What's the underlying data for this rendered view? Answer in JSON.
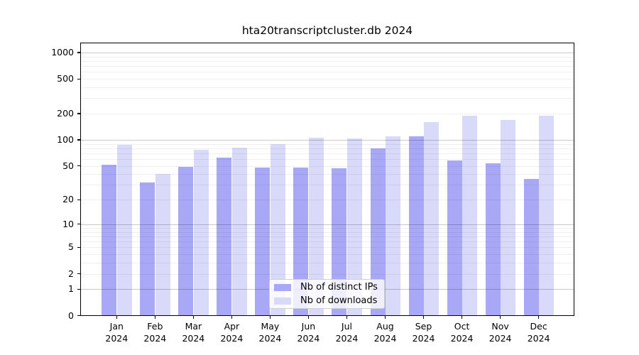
{
  "title": "hta20transcriptcluster.db 2024",
  "chart_data": {
    "type": "bar",
    "title": "hta20transcriptcluster.db 2024",
    "categories": [
      "Jan",
      "Feb",
      "Mar",
      "Apr",
      "May",
      "Jun",
      "Jul",
      "Aug",
      "Sep",
      "Oct",
      "Nov",
      "Dec"
    ],
    "category_year": "2024",
    "series": [
      {
        "name": "Nb of distinct IPs",
        "color": "#a8a8f6",
        "values": [
          52,
          32,
          49,
          62,
          48,
          48,
          47,
          80,
          109,
          58,
          54,
          35
        ]
      },
      {
        "name": "Nb of downloads",
        "color": "#d9d9fa",
        "values": [
          87,
          40,
          77,
          81,
          89,
          105,
          104,
          110,
          161,
          190,
          169,
          189
        ]
      }
    ],
    "yscale": "log1p",
    "yticks": [
      0,
      1,
      2,
      5,
      10,
      20,
      50,
      100,
      200,
      500,
      1000
    ],
    "ytick_labels": [
      "0",
      "1",
      "2",
      "5",
      "10",
      "20",
      "50",
      "100",
      "200",
      "500",
      "1000"
    ],
    "ylim": [
      0,
      1300
    ],
    "grid": true,
    "grid_major_at": [
      1,
      10,
      100,
      1000
    ],
    "legend_position": "bottom-center"
  },
  "legend": {
    "items": [
      {
        "label": "Nb of distinct IPs"
      },
      {
        "label": "Nb of downloads"
      }
    ]
  },
  "colors": {
    "bar_distinct_ips": "#a8a8f6",
    "bar_downloads": "#d9d9fa",
    "grid_major": "#c9c9c9",
    "grid_minor": "#efefef",
    "axis": "#000000",
    "legend_border": "#cfcfcf"
  }
}
